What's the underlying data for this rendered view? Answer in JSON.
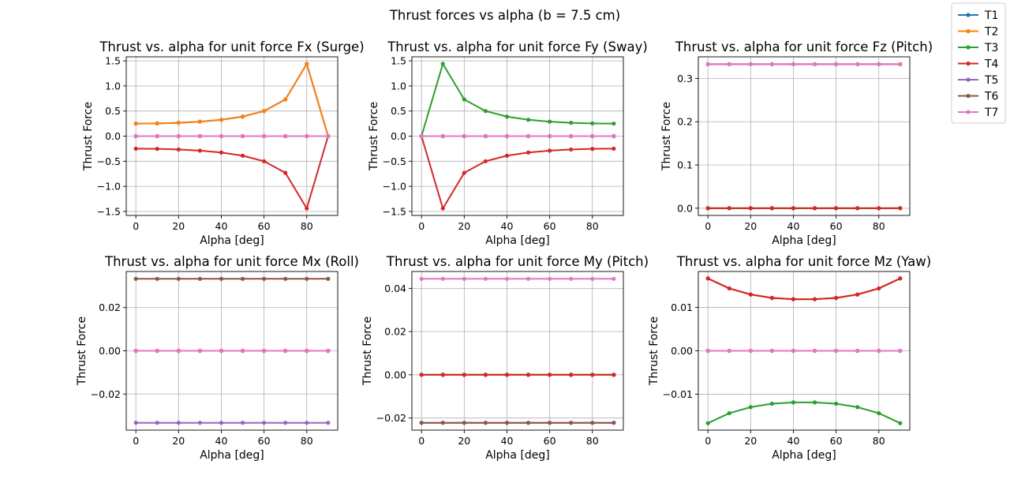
{
  "figure": {
    "suptitle": "Thrust forces vs alpha (b = 7.5 cm)",
    "series_colors": {
      "T1": "#1f77b4",
      "T2": "#ff7f0e",
      "T3": "#2ca02c",
      "T4": "#d62728",
      "T5": "#9467bd",
      "T6": "#8c564b",
      "T7": "#e377c2"
    },
    "grid": true,
    "legend_position": "top-right"
  },
  "chart_data": [
    {
      "type": "line",
      "title": "Thrust vs. alpha for unit force Fx (Surge)",
      "xlabel": "Alpha [deg]",
      "ylabel": "Thrust Force",
      "x": [
        0,
        10,
        20,
        30,
        40,
        50,
        60,
        70,
        80,
        90
      ],
      "xlim": [
        -4.5,
        94.5
      ],
      "ylim": [
        -1.58,
        1.58
      ],
      "xticks": [
        0,
        20,
        40,
        60,
        80
      ],
      "yticks": [
        -1.5,
        -1.0,
        -0.5,
        0.0,
        0.5,
        1.0,
        1.5
      ],
      "ytick_labels": [
        "−1.5",
        "−1.0",
        "−0.5",
        "0.0",
        "0.5",
        "1.0",
        "1.5"
      ],
      "series": [
        {
          "name": "T1",
          "values": [
            0.25,
            0.254,
            0.266,
            0.289,
            0.326,
            0.389,
            0.5,
            0.731,
            1.44,
            0.0
          ]
        },
        {
          "name": "T2",
          "values": [
            0.25,
            0.254,
            0.266,
            0.289,
            0.326,
            0.389,
            0.5,
            0.731,
            1.44,
            0.0
          ]
        },
        {
          "name": "T3",
          "values": [
            0,
            0,
            0,
            0,
            0,
            0,
            0,
            0,
            0,
            0
          ]
        },
        {
          "name": "T4",
          "values": [
            -0.25,
            -0.254,
            -0.266,
            -0.289,
            -0.326,
            -0.389,
            -0.5,
            -0.731,
            -1.44,
            0.0
          ]
        },
        {
          "name": "T5",
          "values": [
            0,
            0,
            0,
            0,
            0,
            0,
            0,
            0,
            0,
            0
          ]
        },
        {
          "name": "T6",
          "values": [
            0,
            0,
            0,
            0,
            0,
            0,
            0,
            0,
            0,
            0
          ]
        },
        {
          "name": "T7",
          "values": [
            0,
            0,
            0,
            0,
            0,
            0,
            0,
            0,
            0,
            0
          ]
        }
      ]
    },
    {
      "type": "line",
      "title": "Thrust vs. alpha for unit force Fy (Sway)",
      "xlabel": "Alpha [deg]",
      "ylabel": "Thrust Force",
      "x": [
        0,
        10,
        20,
        30,
        40,
        50,
        60,
        70,
        80,
        90
      ],
      "xlim": [
        -4.5,
        94.5
      ],
      "ylim": [
        -1.58,
        1.58
      ],
      "xticks": [
        0,
        20,
        40,
        60,
        80
      ],
      "yticks": [
        -1.5,
        -1.0,
        -0.5,
        0.0,
        0.5,
        1.0,
        1.5
      ],
      "ytick_labels": [
        "−1.5",
        "−1.0",
        "−0.5",
        "0.0",
        "0.5",
        "1.0",
        "1.5"
      ],
      "series": [
        {
          "name": "T1",
          "values": [
            0,
            0,
            0,
            0,
            0,
            0,
            0,
            0,
            0,
            0
          ]
        },
        {
          "name": "T2",
          "values": [
            0,
            0,
            0,
            0,
            0,
            0,
            0,
            0,
            0,
            0
          ]
        },
        {
          "name": "T3",
          "values": [
            0.0,
            1.44,
            0.731,
            0.5,
            0.389,
            0.326,
            0.289,
            0.266,
            0.254,
            0.25
          ]
        },
        {
          "name": "T4",
          "values": [
            0.0,
            -1.44,
            -0.731,
            -0.5,
            -0.389,
            -0.326,
            -0.289,
            -0.266,
            -0.254,
            -0.25
          ]
        },
        {
          "name": "T5",
          "values": [
            0,
            0,
            0,
            0,
            0,
            0,
            0,
            0,
            0,
            0
          ]
        },
        {
          "name": "T6",
          "values": [
            0,
            0,
            0,
            0,
            0,
            0,
            0,
            0,
            0,
            0
          ]
        },
        {
          "name": "T7",
          "values": [
            0,
            0,
            0,
            0,
            0,
            0,
            0,
            0,
            0,
            0
          ]
        }
      ]
    },
    {
      "type": "line",
      "title": "Thrust vs. alpha for unit force Fz (Pitch)",
      "xlabel": "Alpha [deg]",
      "ylabel": "Thrust Force",
      "x": [
        0,
        10,
        20,
        30,
        40,
        50,
        60,
        70,
        80,
        90
      ],
      "xlim": [
        -4.5,
        94.5
      ],
      "ylim": [
        -0.0167,
        0.35
      ],
      "xticks": [
        0,
        20,
        40,
        60,
        80
      ],
      "yticks": [
        0.0,
        0.1,
        0.2,
        0.3
      ],
      "ytick_labels": [
        "0.0",
        "0.1",
        "0.2",
        "0.3"
      ],
      "series": [
        {
          "name": "T1",
          "values": [
            0,
            0,
            0,
            0,
            0,
            0,
            0,
            0,
            0,
            0
          ]
        },
        {
          "name": "T2",
          "values": [
            0,
            0,
            0,
            0,
            0,
            0,
            0,
            0,
            0,
            0
          ]
        },
        {
          "name": "T3",
          "values": [
            0,
            0,
            0,
            0,
            0,
            0,
            0,
            0,
            0,
            0
          ]
        },
        {
          "name": "T4",
          "values": [
            0,
            0,
            0,
            0,
            0,
            0,
            0,
            0,
            0,
            0
          ]
        },
        {
          "name": "T5",
          "values": [
            0.333,
            0.333,
            0.333,
            0.333,
            0.333,
            0.333,
            0.333,
            0.333,
            0.333,
            0.333
          ]
        },
        {
          "name": "T6",
          "values": [
            0.333,
            0.333,
            0.333,
            0.333,
            0.333,
            0.333,
            0.333,
            0.333,
            0.333,
            0.333
          ]
        },
        {
          "name": "T7",
          "values": [
            0.333,
            0.333,
            0.333,
            0.333,
            0.333,
            0.333,
            0.333,
            0.333,
            0.333,
            0.333
          ]
        }
      ]
    },
    {
      "type": "line",
      "title": "Thrust vs. alpha for unit force Mx (Roll)",
      "xlabel": "Alpha [deg]",
      "ylabel": "Thrust Force",
      "x": [
        0,
        10,
        20,
        30,
        40,
        50,
        60,
        70,
        80,
        90
      ],
      "xlim": [
        -4.5,
        94.5
      ],
      "ylim": [
        -0.0367,
        0.0367
      ],
      "xticks": [
        0,
        20,
        40,
        60,
        80
      ],
      "yticks": [
        -0.02,
        0.0,
        0.02
      ],
      "ytick_labels": [
        "−0.02",
        "0.00",
        "0.02"
      ],
      "series": [
        {
          "name": "T1",
          "values": [
            0,
            0,
            0,
            0,
            0,
            0,
            0,
            0,
            0,
            0
          ]
        },
        {
          "name": "T2",
          "values": [
            0,
            0,
            0,
            0,
            0,
            0,
            0,
            0,
            0,
            0
          ]
        },
        {
          "name": "T3",
          "values": [
            0,
            0,
            0,
            0,
            0,
            0,
            0,
            0,
            0,
            0
          ]
        },
        {
          "name": "T4",
          "values": [
            0,
            0,
            0,
            0,
            0,
            0,
            0,
            0,
            0,
            0
          ]
        },
        {
          "name": "T5",
          "values": [
            -0.0333,
            -0.0333,
            -0.0333,
            -0.0333,
            -0.0333,
            -0.0333,
            -0.0333,
            -0.0333,
            -0.0333,
            -0.0333
          ]
        },
        {
          "name": "T6",
          "values": [
            0.0333,
            0.0333,
            0.0333,
            0.0333,
            0.0333,
            0.0333,
            0.0333,
            0.0333,
            0.0333,
            0.0333
          ]
        },
        {
          "name": "T7",
          "values": [
            0,
            0,
            0,
            0,
            0,
            0,
            0,
            0,
            0,
            0
          ]
        }
      ]
    },
    {
      "type": "line",
      "title": "Thrust vs. alpha for unit force My (Pitch)",
      "xlabel": "Alpha [deg]",
      "ylabel": "Thrust Force",
      "x": [
        0,
        10,
        20,
        30,
        40,
        50,
        60,
        70,
        80,
        90
      ],
      "xlim": [
        -4.5,
        94.5
      ],
      "ylim": [
        -0.0256,
        0.0478
      ],
      "xticks": [
        0,
        20,
        40,
        60,
        80
      ],
      "yticks": [
        -0.02,
        0.0,
        0.02,
        0.04
      ],
      "ytick_labels": [
        "−0.02",
        "0.00",
        "0.02",
        "0.04"
      ],
      "series": [
        {
          "name": "T1",
          "values": [
            0,
            0,
            0,
            0,
            0,
            0,
            0,
            0,
            0,
            0
          ]
        },
        {
          "name": "T2",
          "values": [
            0,
            0,
            0,
            0,
            0,
            0,
            0,
            0,
            0,
            0
          ]
        },
        {
          "name": "T3",
          "values": [
            0,
            0,
            0,
            0,
            0,
            0,
            0,
            0,
            0,
            0
          ]
        },
        {
          "name": "T4",
          "values": [
            0,
            0,
            0,
            0,
            0,
            0,
            0,
            0,
            0,
            0
          ]
        },
        {
          "name": "T5",
          "values": [
            -0.0222,
            -0.0222,
            -0.0222,
            -0.0222,
            -0.0222,
            -0.0222,
            -0.0222,
            -0.0222,
            -0.0222,
            -0.0222
          ]
        },
        {
          "name": "T6",
          "values": [
            -0.0222,
            -0.0222,
            -0.0222,
            -0.0222,
            -0.0222,
            -0.0222,
            -0.0222,
            -0.0222,
            -0.0222,
            -0.0222
          ]
        },
        {
          "name": "T7",
          "values": [
            0.0444,
            0.0444,
            0.0444,
            0.0444,
            0.0444,
            0.0444,
            0.0444,
            0.0444,
            0.0444,
            0.0444
          ]
        }
      ]
    },
    {
      "type": "line",
      "title": "Thrust vs. alpha for unit force Mz (Yaw)",
      "xlabel": "Alpha [deg]",
      "ylabel": "Thrust Force",
      "x": [
        0,
        10,
        20,
        30,
        40,
        50,
        60,
        70,
        80,
        90
      ],
      "xlim": [
        -4.5,
        94.5
      ],
      "ylim": [
        -0.0183,
        0.0183
      ],
      "xticks": [
        0,
        20,
        40,
        60,
        80
      ],
      "yticks": [
        -0.01,
        0.0,
        0.01
      ],
      "ytick_labels": [
        "−0.01",
        "0.00",
        "0.01"
      ],
      "series": [
        {
          "name": "T1",
          "values": [
            0.0167,
            0.0144,
            0.013,
            0.0122,
            0.0119,
            0.0119,
            0.0122,
            0.013,
            0.0144,
            0.0167
          ]
        },
        {
          "name": "T2",
          "values": [
            0.0167,
            0.0144,
            0.013,
            0.0122,
            0.0119,
            0.0119,
            0.0122,
            0.013,
            0.0144,
            0.0167
          ]
        },
        {
          "name": "T3",
          "values": [
            -0.0167,
            -0.0144,
            -0.013,
            -0.0122,
            -0.0119,
            -0.0119,
            -0.0122,
            -0.013,
            -0.0144,
            -0.0167
          ]
        },
        {
          "name": "T4",
          "values": [
            0.0167,
            0.0144,
            0.013,
            0.0122,
            0.0119,
            0.0119,
            0.0122,
            0.013,
            0.0144,
            0.0167
          ]
        },
        {
          "name": "T5",
          "values": [
            0,
            0,
            0,
            0,
            0,
            0,
            0,
            0,
            0,
            0
          ]
        },
        {
          "name": "T6",
          "values": [
            0,
            0,
            0,
            0,
            0,
            0,
            0,
            0,
            0,
            0
          ]
        },
        {
          "name": "T7",
          "values": [
            0,
            0,
            0,
            0,
            0,
            0,
            0,
            0,
            0,
            0
          ]
        }
      ]
    }
  ]
}
